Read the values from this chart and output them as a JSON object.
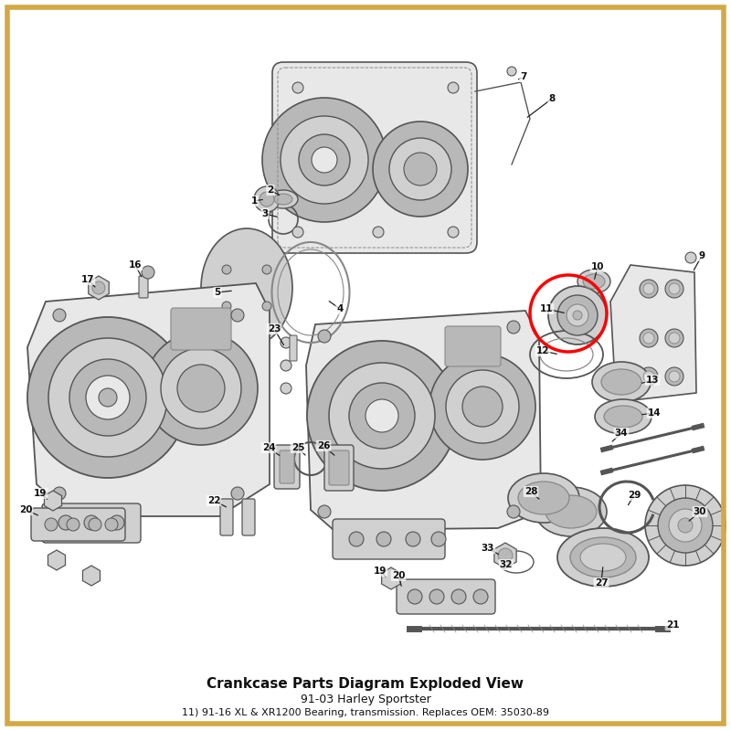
{
  "title": "Crankcase Parts Diagram Exploded View",
  "subtitle1": "91-03 Harley Sportster",
  "subtitle2": "11) 91-16 XL & XR1200 Bearing, transmission. Replaces OEM: 35030-89",
  "background_color": "#ffffff",
  "border_color": "#d4a843",
  "highlight_color": "#ff0000",
  "text_color": "#111111",
  "gray_fill": "#d0d0d0",
  "gray_edge": "#555555",
  "gray_dark": "#888888",
  "gray_light": "#e8e8e8",
  "gray_mid": "#b8b8b8"
}
